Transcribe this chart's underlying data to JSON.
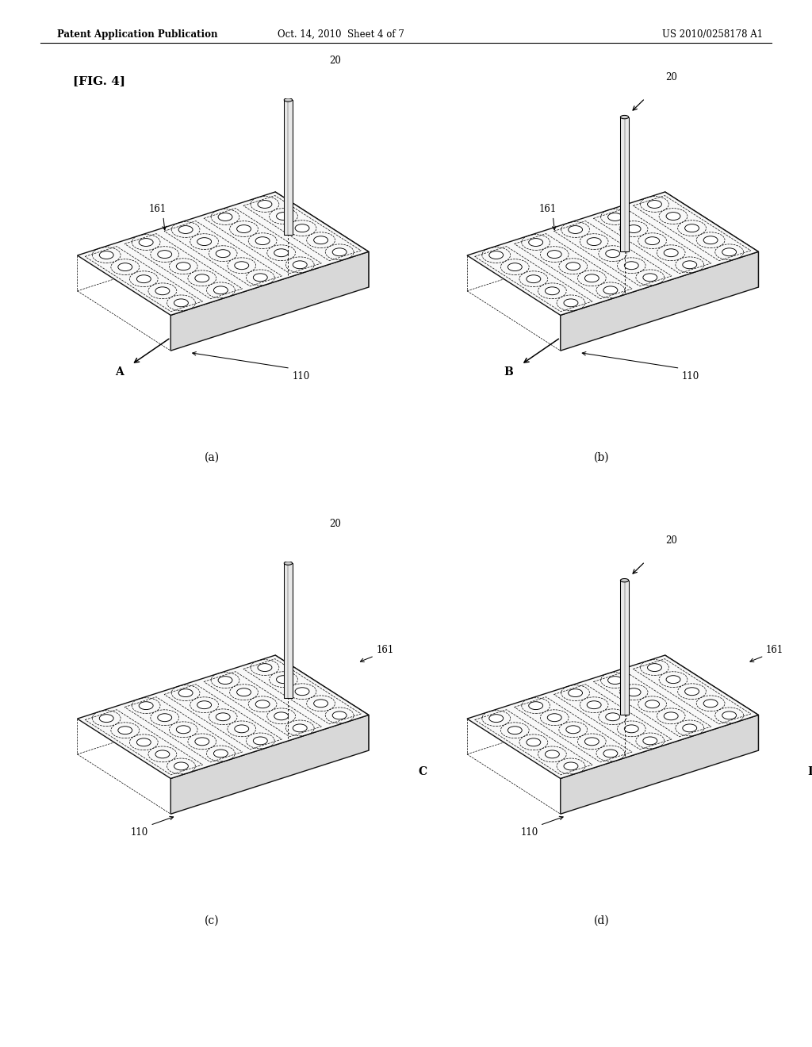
{
  "bg_color": "#ffffff",
  "header_left": "Patent Application Publication",
  "header_mid": "Oct. 14, 2010  Sheet 4 of 7",
  "header_right": "US 2010/0258178 A1",
  "fig_label": "[FIG. 4]",
  "subplots": [
    {
      "label": "(a)",
      "direction": "A",
      "dir_lr": "left",
      "tool_u": 0.52,
      "tool_v": 0.82
    },
    {
      "label": "(b)",
      "direction": "B",
      "dir_lr": "left",
      "tool_u": 0.52,
      "tool_v": 0.55
    },
    {
      "label": "(c)",
      "direction": "C",
      "dir_lr": "right",
      "tool_u": 0.52,
      "tool_v": 0.82
    },
    {
      "label": "(d)",
      "direction": "D",
      "dir_lr": "right",
      "tool_u": 0.52,
      "tool_v": 0.55
    }
  ],
  "plate_label": "110",
  "layer_label": "161",
  "tool_label": "20",
  "rows": 5,
  "cols": 5,
  "top_face_color": "#f8f8f8",
  "right_face_color": "#e0e0e0",
  "front_face_color": "#d8d8d8",
  "edge_color": "#111111",
  "hole_fill": "#ffffff",
  "tool_body_color": "#e8e8e8",
  "tool_tip_color": "#cccccc",
  "lw": 1.0
}
